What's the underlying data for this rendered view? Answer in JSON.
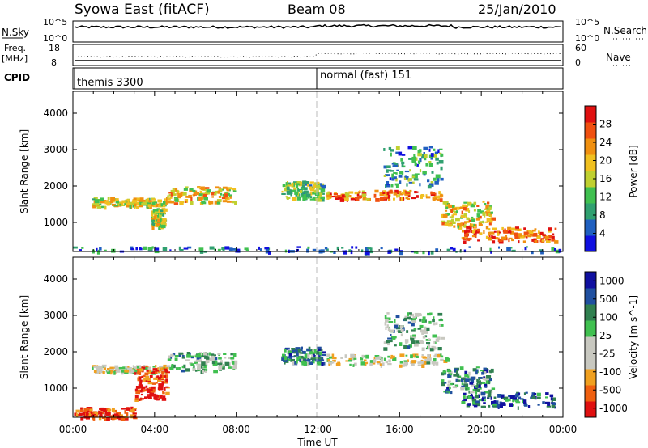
{
  "header": {
    "station": "Syowa East (fitACF)",
    "beam": "Beam 08",
    "date": "25/Jan/2010"
  },
  "noise_panel": {
    "left_label": "N.Sky",
    "left_top": "10^5",
    "left_bottom": "10^0",
    "right_label": "N.Search",
    "right_top": "10^5",
    "right_bottom": "10^0"
  },
  "freq_panel": {
    "left_label_1": "Freq.",
    "left_label_2": "[MHz]",
    "left_top": "18",
    "left_bottom": "8",
    "right_label": "Nave",
    "right_top": "60",
    "right_bottom": "0"
  },
  "cpid_panel": {
    "label": "CPID",
    "segments": [
      {
        "text": "themis 3300",
        "start_hour": 0
      },
      {
        "text": "normal (fast) 151",
        "start_hour": 12
      }
    ]
  },
  "colors": {
    "power": [
      "#1010e0",
      "#2060c0",
      "#30a070",
      "#40c050",
      "#c0d030",
      "#f0c020",
      "#f09010",
      "#f05010",
      "#e01010"
    ],
    "velocity": [
      "#e01010",
      "#f06010",
      "#f0a020",
      "#c8c8c0",
      "#c8c8c0",
      "#40c050",
      "#308050",
      "#2050a0",
      "#1010a0"
    ]
  },
  "chart_data": [
    {
      "type": "heatmap",
      "quantity": "Power",
      "ylabel": "Slant Range [km]",
      "yticks": [
        "1000",
        "2000",
        "3000",
        "4000"
      ],
      "ylim": [
        200,
        4600
      ],
      "xlim": [
        0,
        24
      ],
      "colorbar_label": "Power [dB]",
      "colorbar_ticks": [
        "4",
        "8",
        "12",
        "16",
        "20",
        "24",
        "28"
      ],
      "regions": [
        {
          "t0": 0.9,
          "t1": 4.6,
          "r0": 1450,
          "r1": 1700,
          "level": 0.55
        },
        {
          "t0": 3.8,
          "t1": 4.4,
          "r0": 900,
          "r1": 1400,
          "level": 0.5
        },
        {
          "t0": 4.6,
          "t1": 7.9,
          "r0": 1550,
          "r1": 2000,
          "level": 0.6
        },
        {
          "t0": 10.2,
          "t1": 12.2,
          "r0": 1650,
          "r1": 2150,
          "level": 0.4
        },
        {
          "t0": 12.4,
          "t1": 18.3,
          "r0": 1650,
          "r1": 1900,
          "level": 0.75
        },
        {
          "t0": 15.2,
          "t1": 18.0,
          "r0": 2000,
          "r1": 3100,
          "level": 0.3
        },
        {
          "t0": 18.0,
          "t1": 20.5,
          "r0": 900,
          "r1": 1600,
          "level": 0.6
        },
        {
          "t0": 19.0,
          "t1": 23.6,
          "r0": 500,
          "r1": 900,
          "level": 0.8
        },
        {
          "t0": 0.0,
          "t1": 24.0,
          "r0": 200,
          "r1": 350,
          "level": 0.2
        }
      ]
    },
    {
      "type": "heatmap",
      "quantity": "Velocity",
      "ylabel": "Slant Range [km]",
      "yticks": [
        "1000",
        "2000",
        "3000",
        "4000"
      ],
      "ylim": [
        200,
        4600
      ],
      "xlim": [
        0,
        24
      ],
      "xticks": [
        "00:00",
        "04:00",
        "08:00",
        "12:00",
        "16:00",
        "20:00",
        "00:00"
      ],
      "xlabel": "Time UT",
      "colorbar_label": "Velocity [m s^-1]",
      "colorbar_ticks": [
        "1000",
        "500",
        "100",
        "25",
        "-25",
        "-100",
        "-500",
        "-1000"
      ],
      "regions": [
        {
          "t0": 0.9,
          "t1": 4.6,
          "r0": 1450,
          "r1": 1650,
          "level": 0.4
        },
        {
          "t0": 3.0,
          "t1": 4.6,
          "r0": 700,
          "r1": 1600,
          "level": 0.1
        },
        {
          "t0": 4.6,
          "t1": 7.9,
          "r0": 1500,
          "r1": 2000,
          "level": 0.6
        },
        {
          "t0": 10.2,
          "t1": 12.2,
          "r0": 1700,
          "r1": 2150,
          "level": 0.7
        },
        {
          "t0": 12.4,
          "t1": 18.3,
          "r0": 1650,
          "r1": 1950,
          "level": 0.45
        },
        {
          "t0": 15.2,
          "t1": 18.0,
          "r0": 2100,
          "r1": 3100,
          "level": 0.6
        },
        {
          "t0": 18.0,
          "t1": 20.5,
          "r0": 900,
          "r1": 1600,
          "level": 0.7
        },
        {
          "t0": 19.0,
          "t1": 23.6,
          "r0": 500,
          "r1": 900,
          "level": 0.8
        },
        {
          "t0": 0.0,
          "t1": 3.0,
          "r0": 200,
          "r1": 500,
          "level": 0.15
        }
      ]
    }
  ]
}
